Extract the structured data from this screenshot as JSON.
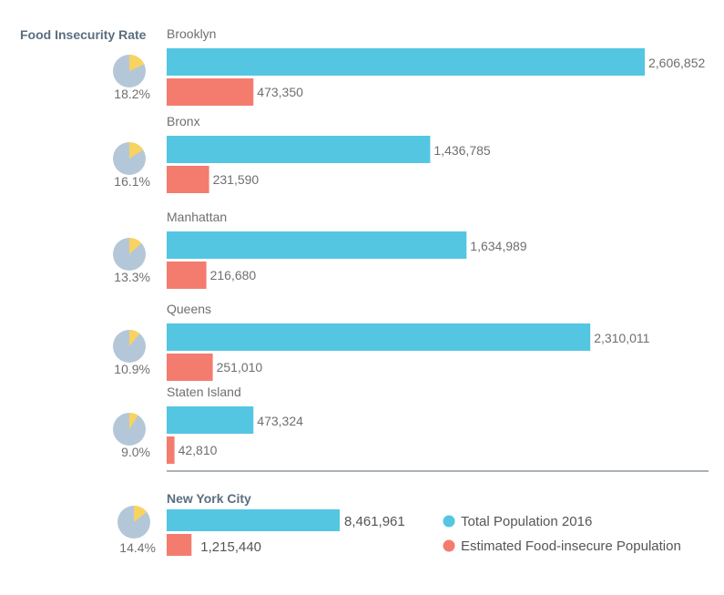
{
  "chart_data": {
    "type": "bar",
    "title": "Food Insecurity Rate",
    "colors": {
      "total": "#54c6e2",
      "insecure": "#f47c6f",
      "pie_base": "#b4c7d8",
      "pie_slice": "#f9d35f",
      "divider": "#55656f",
      "text": "#6f6f6f",
      "title": "#5a6e80"
    },
    "series": [
      {
        "key": "total",
        "name": "Total Population 2016"
      },
      {
        "key": "insecure",
        "name": "Estimated Food-insecure Population"
      }
    ],
    "categories": [
      "Brooklyn",
      "Bronx",
      "Manhattan",
      "Queens",
      "Staten Island"
    ],
    "boroughs": [
      {
        "name": "Brooklyn",
        "rate": 18.2,
        "rate_label": "18.2%",
        "total": 2606852,
        "total_label": "2,606,852",
        "insecure": 473350,
        "insecure_label": "473,350"
      },
      {
        "name": "Bronx",
        "rate": 16.1,
        "rate_label": "16.1%",
        "total": 1436785,
        "total_label": "1,436,785",
        "insecure": 231590,
        "insecure_label": "231,590"
      },
      {
        "name": "Manhattan",
        "rate": 13.3,
        "rate_label": "13.3%",
        "total": 1634989,
        "total_label": "1,634,989",
        "insecure": 216680,
        "insecure_label": "216,680"
      },
      {
        "name": "Queens",
        "rate": 10.9,
        "rate_label": "10.9%",
        "total": 2310011,
        "total_label": "2,310,011",
        "insecure": 251010,
        "insecure_label": "251,010"
      },
      {
        "name": "Staten Island",
        "rate": 9.0,
        "rate_label": "9.0%",
        "total": 473324,
        "total_label": "473,324",
        "insecure": 42810,
        "insecure_label": "42,810"
      }
    ],
    "citywide": {
      "name": "New York City",
      "rate": 14.4,
      "rate_label": "14.4%",
      "total": 8461961,
      "total_label": "8,461,961",
      "insecure": 1215440,
      "insecure_label": "1,215,440"
    },
    "citywide_scale": "compressed",
    "legend_position": "bottom-right",
    "grid": false
  }
}
